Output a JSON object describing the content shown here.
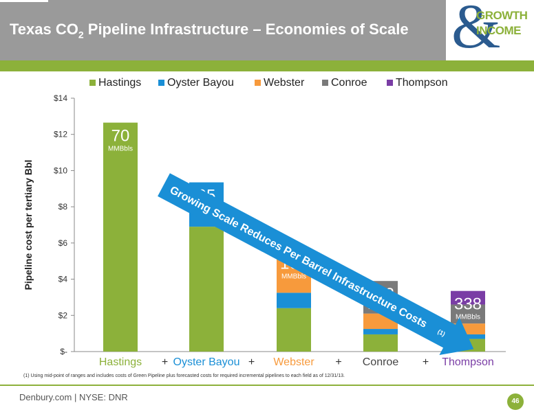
{
  "header": {
    "title_main": "Texas CO",
    "title_sub": "2",
    "title_rest": " Pipeline Infrastructure – Economies of Scale"
  },
  "logo": {
    "amp": "&",
    "line1": "GROWTH",
    "line2": "INCOME"
  },
  "chart_data": {
    "type": "bar",
    "stacked": true,
    "title": "",
    "ylabel": "Pipeline cost per tertiary Bbl",
    "xlabel": "",
    "ylim": [
      0,
      14
    ],
    "yticks": [
      0,
      2,
      4,
      6,
      8,
      10,
      12,
      14
    ],
    "ytick_labels": [
      "$-",
      "$2",
      "$4",
      "$6",
      "$8",
      "$10",
      "$12",
      "$14"
    ],
    "grid": false,
    "legend_position": "top",
    "categories": [
      "Hastings",
      "Oyster Bayou",
      "Webster",
      "Conroe",
      "Thompson"
    ],
    "separator": "+",
    "series": [
      {
        "name": "Hastings",
        "color": "#8cb13a",
        "values": [
          12.65,
          6.9,
          2.4,
          0.95,
          0.7
        ]
      },
      {
        "name": "Oyster Bayou",
        "color": "#1a8fd6",
        "values": [
          0,
          2.45,
          0.85,
          0.3,
          0.25
        ]
      },
      {
        "name": "Webster",
        "color": "#f79a3c",
        "values": [
          0,
          0,
          2.35,
          0.85,
          0.6
        ]
      },
      {
        "name": "Conroe",
        "color": "#7a7a7a",
        "values": [
          0,
          0,
          0,
          1.8,
          1.05
        ]
      },
      {
        "name": "Thompson",
        "color": "#7a3da5",
        "values": [
          0,
          0,
          0,
          0,
          0.75
        ]
      }
    ],
    "category_label_colors": [
      "#8cb13a",
      "#1a8fd6",
      "#f79a3c",
      "#444444",
      "#7a3da5"
    ],
    "bar_annotations": [
      {
        "value": "70",
        "unit": "MMBbls"
      },
      {
        "value": "95",
        "unit": "MMBbls"
      },
      {
        "value": "163",
        "unit": "MMBbls"
      },
      {
        "value": "293",
        "unit": "MMBbls"
      },
      {
        "value": "338",
        "unit": "MMBbls"
      }
    ],
    "arrow_text": "Growing Scale Reduces Per Barrel Infrastructure Costs",
    "arrow_note": "(1)",
    "arrow_color": "#1a8fd6"
  },
  "footnote": "(1) Using mid-point of ranges and includes costs of Green Pipeline plus forecasted costs for required incremental pipelines to each field as of 12/31/13.",
  "footer": {
    "text": "Denbury.com | NYSE: DNR",
    "page": "46"
  }
}
